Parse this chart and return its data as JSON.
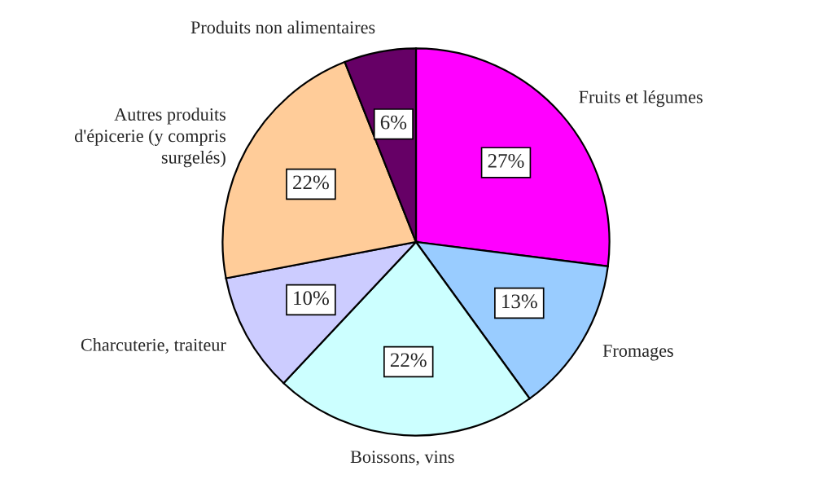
{
  "chart_data": {
    "type": "pie",
    "categories": [
      "Fruits et légumes",
      "Fromages",
      "Boissons, vins",
      "Charcuterie, traiteur",
      "Autres produits\nd'épicerie (y compris\nsurgelés)",
      "Produits non alimentaires"
    ],
    "values": [
      27,
      13,
      22,
      10,
      22,
      6
    ],
    "colors": [
      "#ff00ff",
      "#99ccff",
      "#ccffff",
      "#ccccff",
      "#ffcc99",
      "#660066"
    ],
    "value_labels": [
      "27%",
      "13%",
      "22%",
      "10%",
      "22%",
      "6%"
    ]
  }
}
